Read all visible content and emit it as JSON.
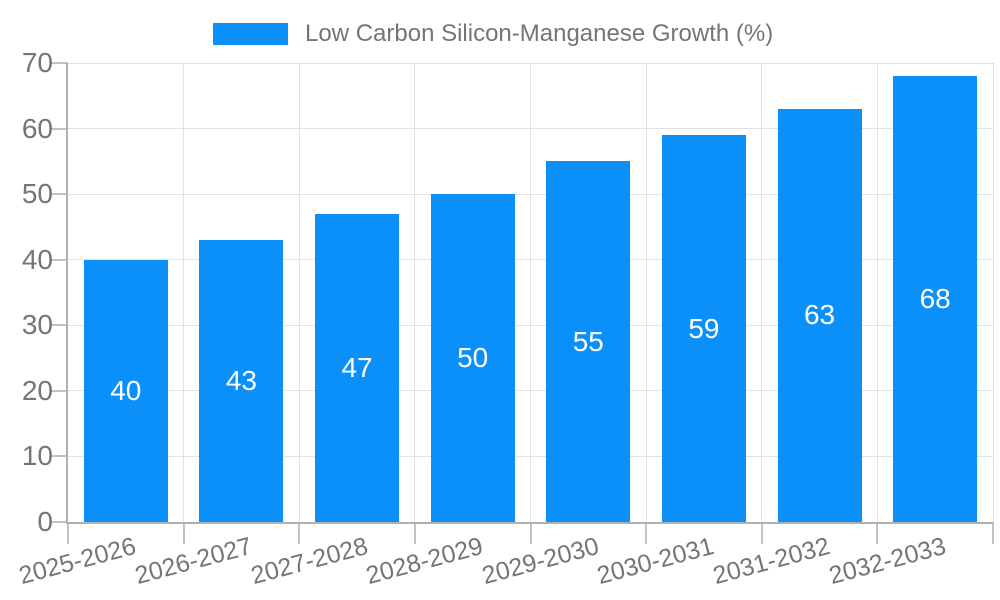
{
  "chart_data": {
    "type": "bar",
    "title": "",
    "legend": "Low Carbon Silicon-Manganese Growth (%)",
    "categories": [
      "2025-2026",
      "2026-2027",
      "2027-2028",
      "2028-2029",
      "2029-2030",
      "2030-2031",
      "2031-2032",
      "2032-2033"
    ],
    "values": [
      40,
      43,
      47,
      50,
      55,
      59,
      63,
      68
    ],
    "xlabel": "",
    "ylabel": "",
    "ylim": [
      0,
      70
    ],
    "yticks": [
      0,
      10,
      20,
      30,
      40,
      50,
      60,
      70
    ],
    "grid": true,
    "legend_position": "top-center",
    "value_label_position": "inside-center",
    "x_label_rotation_deg": -15
  },
  "colors": {
    "bar": "#0a90f8",
    "value_label": "#ffffff",
    "axis": "#b0b0b0",
    "tick": "#c2c2c2",
    "grid": "#e2e2e2",
    "text": "#757575",
    "background": "#ffffff"
  }
}
